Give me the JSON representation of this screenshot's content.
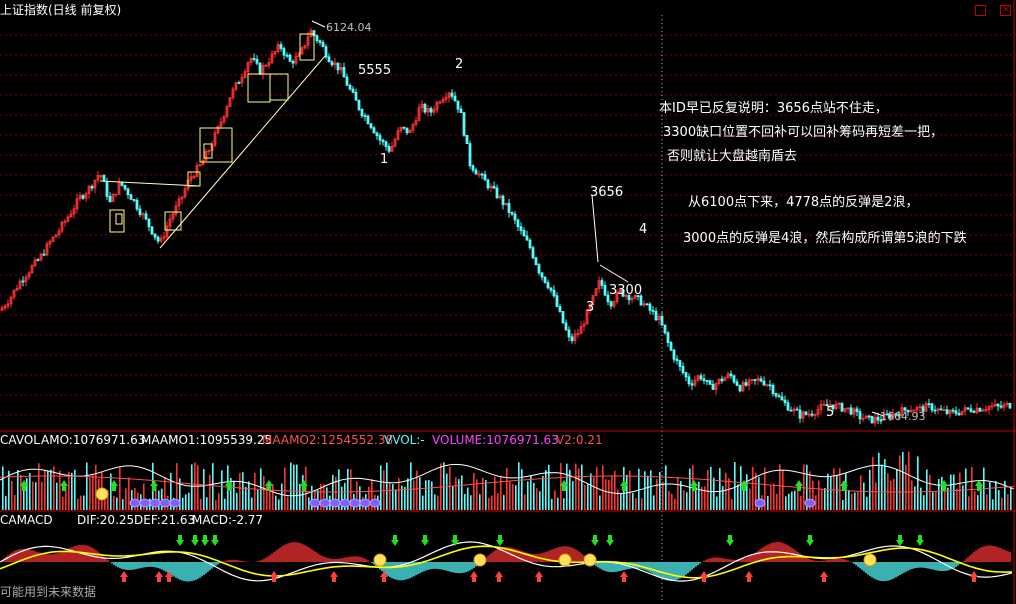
{
  "title": "上证指数(日线 前复权)",
  "colors": {
    "background": "#000000",
    "up": "#ff3232",
    "down": "#54fcfc",
    "grid": "#800000",
    "text": "#ffffff",
    "boxes": "#ffff80",
    "dif": "#ffffff",
    "dea": "#ffff00"
  },
  "annotations": {
    "high": "6124.04",
    "low": "1664.93",
    "level_5555": "5555",
    "level_3656": "3656",
    "level_3300": "3300",
    "wave_1": "1",
    "wave_2": "2",
    "wave_3": "3",
    "wave_4": "4",
    "wave_5": "5"
  },
  "notes": {
    "line1": "本ID早已反复说明：3656点站不住走，",
    "line2": "3300缺口位置不回补可以回补筹码再短差一把，",
    "line3": "否则就让大盘越南盾去",
    "line4": "从6100点下来，4778点的反弹是2浪，",
    "line5": "3000点的反弹是4浪，然后构成所谓第5浪的下跌"
  },
  "volume_panel": {
    "name": "CAVOL",
    "amo": "AMO:1076971.63",
    "maamo1": "MAAMO1:1095539.25",
    "maamo2": "MAAMO2:1254552.38",
    "vvol": "VVOL:-",
    "volume": "VOLUME:1076971.63",
    "v2": "V2:0.21"
  },
  "macd_panel": {
    "name": "CAMACD",
    "dif": "DIF:20.25",
    "def": "DEF:21.63",
    "macd": "MACD:-2.77"
  },
  "footer_note": "可能用到未来数据",
  "chart_data": {
    "type": "line",
    "title": "上证指数(日线 前复权)",
    "x": [
      0,
      10,
      20,
      30,
      40,
      50,
      60,
      70,
      80,
      90,
      100,
      110,
      120,
      130,
      140,
      150,
      160,
      170,
      180,
      190,
      200,
      210,
      220,
      230,
      240,
      250,
      260,
      270,
      280,
      290,
      300,
      310,
      320,
      330,
      340,
      350,
      360,
      370,
      380,
      390,
      400,
      410,
      420,
      430,
      440,
      450,
      460,
      470,
      480,
      490,
      500,
      510,
      520,
      530,
      540,
      550,
      560,
      570,
      580,
      590,
      600,
      610,
      620,
      630,
      640,
      650,
      660,
      670,
      680,
      690,
      700,
      710,
      720,
      730,
      740,
      750,
      760,
      770,
      780,
      790,
      800,
      810,
      820,
      830,
      840,
      850,
      860,
      870,
      880,
      890,
      900,
      910,
      920,
      930,
      940,
      950,
      960,
      970,
      980,
      990,
      1000,
      1010
    ],
    "series": [
      {
        "values": [
          2920,
          3060,
          3250,
          3390,
          3520,
          3700,
          3850,
          4030,
          4210,
          4330,
          4500,
          4150,
          4380,
          4240,
          4060,
          3870,
          3680,
          3970,
          4170,
          4440,
          4570,
          4780,
          5050,
          5370,
          5570,
          5820,
          5660,
          5800,
          5950,
          5760,
          5830,
          6124,
          5980,
          5790,
          5680,
          5440,
          5220,
          5060,
          4870,
          4750,
          5000,
          4960,
          5250,
          5180,
          5340,
          5440,
          5210,
          4600,
          4460,
          4330,
          4200,
          4040,
          3830,
          3640,
          3350,
          3180,
          2870,
          2560,
          2690,
          2960,
          3260,
          3000,
          3130,
          3080,
          3030,
          2920,
          2800,
          2480,
          2260,
          2080,
          2180,
          2030,
          2120,
          2180,
          2040,
          2080,
          2130,
          2060,
          1900,
          1800,
          1720,
          1740,
          1800,
          1840,
          1810,
          1780,
          1700,
          1664,
          1680,
          1720,
          1760,
          1800,
          1790,
          1820,
          1770,
          1740,
          1760,
          1790,
          1800,
          1820,
          1810,
          1840
        ]
      }
    ],
    "ylim": [
      1550,
      6300
    ],
    "grid": true
  }
}
